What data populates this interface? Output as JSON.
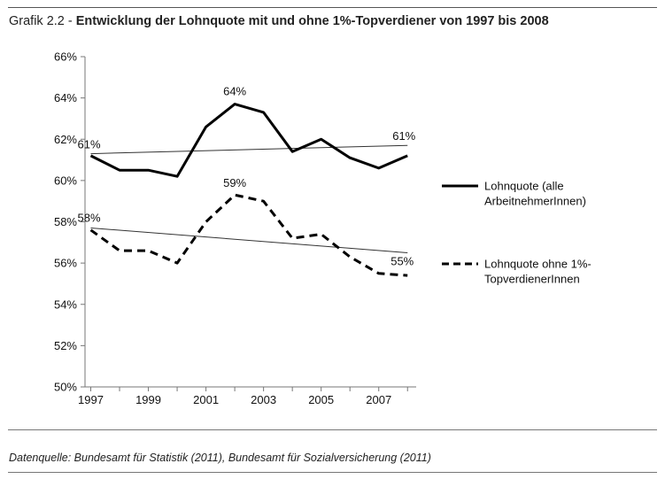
{
  "header": {
    "prefix": "Grafik 2.2 - ",
    "title": "Entwicklung der Lohnquote mit und ohne 1%-Topverdiener von 1997 bis 2008"
  },
  "footer": {
    "source": "Datenquelle: Bundesamt für Statistik (2011), Bundesamt für Sozialversicherung (2011)"
  },
  "chart_data": {
    "type": "line",
    "title": "Entwicklung der Lohnquote mit und ohne 1%-Topverdiener von 1997 bis 2008",
    "xlabel": "",
    "ylabel": "",
    "x": [
      1997,
      1998,
      1999,
      2000,
      2001,
      2002,
      2003,
      2004,
      2005,
      2006,
      2007,
      2008
    ],
    "x_tick_labels": [
      "1997",
      "1999",
      "2001",
      "2003",
      "2005",
      "2007"
    ],
    "y_tick_labels": [
      "50%",
      "52%",
      "54%",
      "56%",
      "58%",
      "60%",
      "62%",
      "64%",
      "66%"
    ],
    "ylim": [
      50,
      66
    ],
    "xlim": [
      1996.8,
      2008.3
    ],
    "grid": false,
    "legend_position": "right",
    "series": [
      {
        "name": "Lohnquote (alle ArbeitnehmerInnen)",
        "name_lines": [
          "Lohnquote (alle",
          "ArbeitnehmerInnen)"
        ],
        "style": "solid",
        "values": [
          61.2,
          60.5,
          60.5,
          60.2,
          62.6,
          63.7,
          63.3,
          61.4,
          62.0,
          61.1,
          60.6,
          61.2
        ],
        "trend": [
          61.3,
          61.7
        ]
      },
      {
        "name": "Lohnquote ohne 1%-TopverdienerInnen",
        "name_lines": [
          "Lohnquote ohne 1%-",
          "TopverdienerInnen"
        ],
        "style": "dashed",
        "values": [
          57.6,
          56.6,
          56.6,
          56.0,
          58.0,
          59.3,
          59.0,
          57.2,
          57.4,
          56.3,
          55.5,
          55.4
        ],
        "trend": [
          57.7,
          56.5
        ]
      }
    ],
    "annotations": [
      {
        "text": "61%",
        "x": 1997,
        "y": 61.3
      },
      {
        "text": "61%",
        "x": 2008,
        "y": 61.7
      },
      {
        "text": "64%",
        "x": 2002,
        "y": 63.7
      },
      {
        "text": "58%",
        "x": 1997,
        "y": 57.7
      },
      {
        "text": "55%",
        "x": 2008,
        "y": 56.5
      },
      {
        "text": "59%",
        "x": 2002,
        "y": 59.3
      }
    ]
  }
}
